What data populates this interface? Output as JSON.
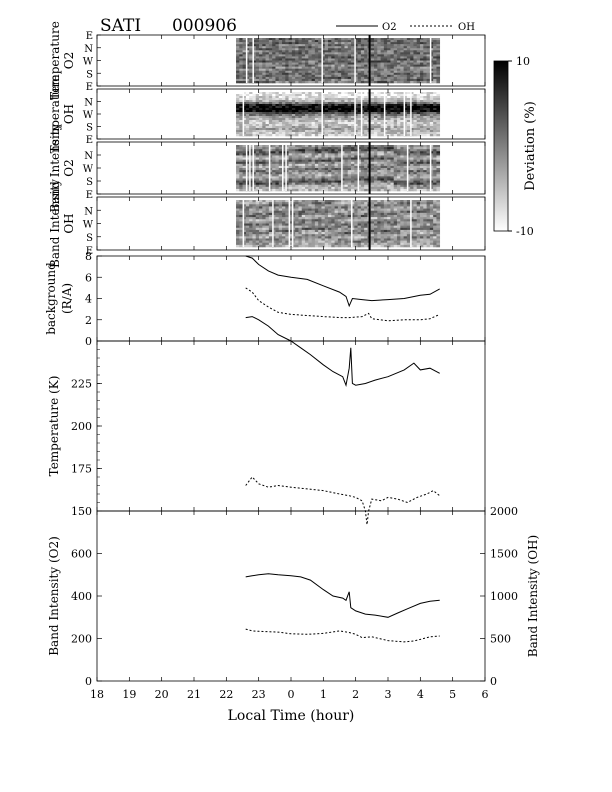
{
  "header": {
    "instrument": "SATI",
    "date": "000906"
  },
  "legend": {
    "o2_label": "O2",
    "oh_label": "OH",
    "placement": "top-right",
    "o2_style": "solid",
    "oh_style": "dashed"
  },
  "colorbar": {
    "label": "Deviation  (%)",
    "max_label": "10",
    "min_label": "-10",
    "range": [
      -10,
      10
    ],
    "colormap": "grayscale (black = +10, white = -10)"
  },
  "chart_data": [
    {
      "type": "heatmap",
      "panel": "Temperature O2",
      "ylabel_line1": "Temperature",
      "ylabel_line2": "O2",
      "direction_ticks": [
        "E",
        "N",
        "W",
        "S",
        "E"
      ],
      "x_range": [
        22.3,
        28.6
      ],
      "profile": [
        0.6,
        0.55,
        0.65,
        0.5,
        0.6,
        0.45,
        0.55,
        0.6,
        0.5,
        0.55,
        0.65,
        0.5,
        0.55,
        0.6,
        0.45,
        0.55,
        0.5,
        0.6,
        0.55,
        0.5,
        0.65,
        0.45
      ],
      "col_start": 0,
      "shift_period": 12
    },
    {
      "type": "heatmap",
      "panel": "Temperature OH",
      "ylabel_line1": "Temperature",
      "ylabel_line2": "OH",
      "direction_ticks": [
        "N",
        "W",
        "S",
        "E"
      ],
      "x_range": [
        22.3,
        28.6
      ],
      "profile": [
        0.1,
        0.15,
        0.2,
        0.3,
        0.55,
        0.85,
        0.95,
        0.98,
        0.95,
        0.7,
        0.5,
        0.4,
        0.3,
        0.25,
        0.2,
        0.25,
        0.3,
        0.35,
        0.3,
        0.25,
        0.2,
        0.15
      ],
      "col_start": 0,
      "shift_period": 1000
    },
    {
      "type": "heatmap",
      "panel": "Band Intensity O2",
      "ylabel_line1": "Band  Intensity",
      "ylabel_line2": "O2",
      "direction_ticks": [
        "N",
        "W",
        "S",
        "E"
      ],
      "x_range": [
        22.3,
        28.6
      ],
      "profile": [
        0.4,
        0.55,
        0.7,
        0.6,
        0.35,
        0.3,
        0.5,
        0.65,
        0.45,
        0.3,
        0.4,
        0.55,
        0.5,
        0.35,
        0.3,
        0.45,
        0.6,
        0.7,
        0.5,
        0.35,
        0.25,
        0.3
      ],
      "col_start": 0,
      "shift_period": 16
    },
    {
      "type": "heatmap",
      "panel": "Band Intensity OH",
      "ylabel_line1": "Band  Intensity",
      "ylabel_line2": "OH",
      "direction_ticks": [
        "N",
        "W",
        "S",
        "E"
      ],
      "x_range": [
        22.3,
        28.6
      ],
      "profile": [
        0.3,
        0.45,
        0.55,
        0.4,
        0.35,
        0.5,
        0.6,
        0.45,
        0.3,
        0.4,
        0.55,
        0.5,
        0.35,
        0.45,
        0.6,
        0.4,
        0.3,
        0.45,
        0.5,
        0.4,
        0.35,
        0.3
      ],
      "col_start": 0,
      "shift_period": 10
    },
    {
      "type": "line",
      "panel": "background",
      "ylabel_line1": "background",
      "ylabel_line2": "(R/A)",
      "y_range": [
        0,
        8
      ],
      "y_ticks": [
        0,
        2,
        4,
        6,
        8
      ],
      "series": [
        {
          "name": "O2",
          "style": "solid",
          "points": [
            [
              22.6,
              8.0
            ],
            [
              22.8,
              7.8
            ],
            [
              23.0,
              7.2
            ],
            [
              23.3,
              6.6
            ],
            [
              23.6,
              6.2
            ],
            [
              24.0,
              6.0
            ],
            [
              24.5,
              5.8
            ],
            [
              25.0,
              5.2
            ],
            [
              25.5,
              4.6
            ],
            [
              25.7,
              4.2
            ],
            [
              25.8,
              3.3
            ],
            [
              25.9,
              4.0
            ],
            [
              26.2,
              3.9
            ],
            [
              26.5,
              3.8
            ],
            [
              27.0,
              3.9
            ],
            [
              27.5,
              4.0
            ],
            [
              28.0,
              4.3
            ],
            [
              28.3,
              4.4
            ],
            [
              28.6,
              4.9
            ]
          ]
        },
        {
          "name": "OH",
          "style": "dashed",
          "points": [
            [
              22.6,
              5.0
            ],
            [
              22.8,
              4.6
            ],
            [
              23.0,
              3.8
            ],
            [
              23.3,
              3.2
            ],
            [
              23.6,
              2.7
            ],
            [
              24.0,
              2.5
            ],
            [
              24.5,
              2.4
            ],
            [
              25.0,
              2.3
            ],
            [
              25.5,
              2.2
            ],
            [
              25.8,
              2.2
            ],
            [
              26.2,
              2.3
            ],
            [
              26.4,
              2.6
            ],
            [
              26.5,
              2.1
            ],
            [
              27.0,
              1.9
            ],
            [
              27.5,
              2.0
            ],
            [
              28.0,
              2.0
            ],
            [
              28.3,
              2.1
            ],
            [
              28.6,
              2.5
            ]
          ]
        },
        {
          "name": "",
          "style": "solid",
          "points": [
            [
              22.6,
              2.2
            ],
            [
              22.8,
              2.3
            ],
            [
              23.0,
              2.0
            ],
            [
              23.3,
              1.4
            ],
            [
              23.6,
              0.6
            ],
            [
              24.0,
              0.0
            ]
          ]
        }
      ]
    },
    {
      "type": "line",
      "panel": "Temperature",
      "ylabel": "Temperature  (K)",
      "y_range": [
        150,
        250
      ],
      "y_ticks": [
        150,
        175,
        200,
        225
      ],
      "series": [
        {
          "name": "O2",
          "style": "solid",
          "points": [
            [
              24.0,
              250.0
            ],
            [
              24.3,
              246.0
            ],
            [
              24.6,
              242.0
            ],
            [
              25.0,
              236.0
            ],
            [
              25.3,
              232.0
            ],
            [
              25.6,
              229.0
            ],
            [
              25.7,
              224.0
            ],
            [
              25.8,
              234.0
            ],
            [
              25.85,
              246.0
            ],
            [
              25.9,
              225.0
            ],
            [
              26.0,
              224.0
            ],
            [
              26.3,
              225.0
            ],
            [
              26.6,
              227.0
            ],
            [
              27.0,
              229.0
            ],
            [
              27.5,
              233.0
            ],
            [
              27.8,
              237.0
            ],
            [
              28.0,
              233.0
            ],
            [
              28.3,
              234.0
            ],
            [
              28.6,
              231.0
            ]
          ]
        },
        {
          "name": "OH",
          "style": "dashed",
          "points": [
            [
              22.6,
              165.0
            ],
            [
              22.8,
              170.0
            ],
            [
              23.0,
              166.0
            ],
            [
              23.3,
              164.0
            ],
            [
              23.6,
              165.0
            ],
            [
              24.0,
              164.0
            ],
            [
              24.5,
              163.0
            ],
            [
              25.0,
              162.0
            ],
            [
              25.5,
              160.0
            ],
            [
              25.8,
              159.0
            ],
            [
              26.0,
              158.0
            ],
            [
              26.2,
              156.0
            ],
            [
              26.3,
              150.0
            ],
            [
              26.35,
              142.0
            ],
            [
              26.4,
              150.0
            ],
            [
              26.5,
              157.0
            ],
            [
              26.8,
              156.0
            ],
            [
              27.0,
              158.0
            ],
            [
              27.3,
              157.0
            ],
            [
              27.6,
              155.0
            ],
            [
              27.9,
              158.0
            ],
            [
              28.2,
              160.0
            ],
            [
              28.4,
              162.0
            ],
            [
              28.6,
              159.0
            ]
          ]
        }
      ]
    },
    {
      "type": "line",
      "panel": "Band Intensity",
      "ylabel_left": "Band  Intensity  (O2)",
      "ylabel_right": "Band  Intensity  (OH)",
      "y_range_left": [
        0,
        800
      ],
      "y_ticks_left": [
        0,
        200,
        400,
        600
      ],
      "y_range_right": [
        0,
        2000
      ],
      "y_ticks_right": [
        0,
        500,
        1000,
        1500,
        2000
      ],
      "series": [
        {
          "name": "O2",
          "style": "solid",
          "axis": "left",
          "points": [
            [
              22.6,
              490
            ],
            [
              22.8,
              495
            ],
            [
              23.0,
              500
            ],
            [
              23.3,
              505
            ],
            [
              23.6,
              500
            ],
            [
              24.0,
              495
            ],
            [
              24.3,
              490
            ],
            [
              24.6,
              475
            ],
            [
              25.0,
              430
            ],
            [
              25.3,
              400
            ],
            [
              25.6,
              390
            ],
            [
              25.7,
              380
            ],
            [
              25.8,
              420
            ],
            [
              25.85,
              345
            ],
            [
              26.0,
              330
            ],
            [
              26.3,
              315
            ],
            [
              26.6,
              310
            ],
            [
              27.0,
              300
            ],
            [
              27.3,
              320
            ],
            [
              27.6,
              340
            ],
            [
              28.0,
              365
            ],
            [
              28.3,
              375
            ],
            [
              28.6,
              380
            ]
          ]
        },
        {
          "name": "OH",
          "style": "dashed",
          "axis": "right",
          "points": [
            [
              22.6,
              610
            ],
            [
              22.8,
              590
            ],
            [
              23.0,
              585
            ],
            [
              23.3,
              580
            ],
            [
              23.6,
              575
            ],
            [
              24.0,
              555
            ],
            [
              24.5,
              550
            ],
            [
              25.0,
              560
            ],
            [
              25.5,
              590
            ],
            [
              25.8,
              570
            ],
            [
              26.0,
              550
            ],
            [
              26.2,
              510
            ],
            [
              26.5,
              520
            ],
            [
              27.0,
              475
            ],
            [
              27.5,
              460
            ],
            [
              27.8,
              470
            ],
            [
              28.0,
              490
            ],
            [
              28.3,
              520
            ],
            [
              28.6,
              530
            ]
          ]
        }
      ]
    }
  ],
  "x_axis": {
    "label": "Local  Time  (hour)",
    "range": [
      18,
      30
    ],
    "tick_labels": [
      "18",
      "19",
      "20",
      "21",
      "22",
      "23",
      "0",
      "1",
      "2",
      "3",
      "4",
      "5",
      "6"
    ]
  }
}
